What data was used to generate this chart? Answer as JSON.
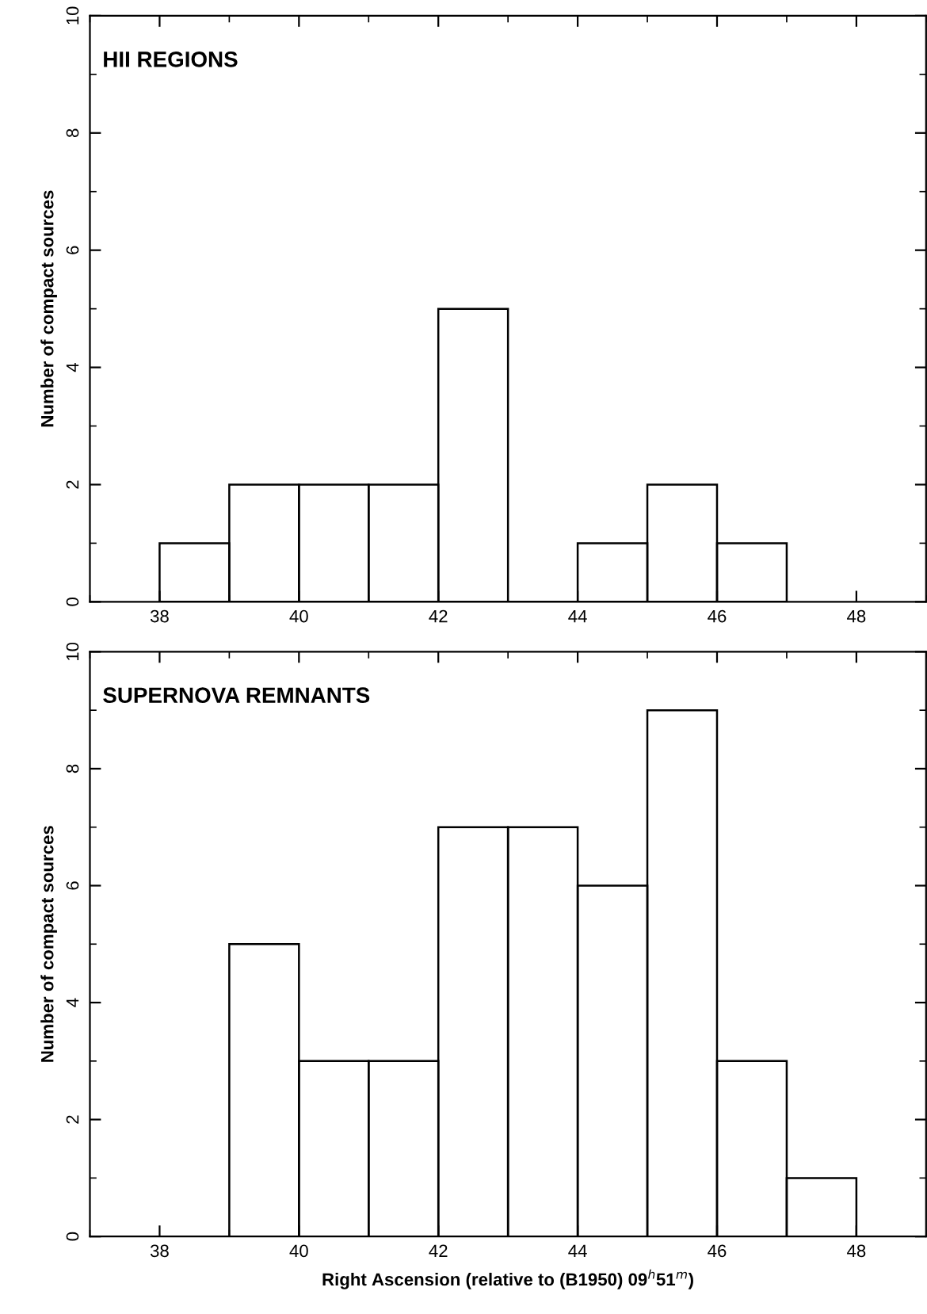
{
  "chart_data": [
    {
      "type": "histogram",
      "title": "HII REGIONS",
      "ylabel": "Number of compact sources",
      "bins": [
        38,
        39,
        40,
        41,
        42,
        43,
        44,
        45,
        46,
        47
      ],
      "values": [
        1,
        2,
        2,
        2,
        5,
        0,
        1,
        2,
        1
      ],
      "color": "#000000",
      "xlim": [
        37,
        49
      ],
      "xticks": [
        38,
        40,
        42,
        44,
        46,
        48
      ],
      "ylim": [
        0,
        10
      ],
      "yticks": [
        0,
        2,
        4,
        6,
        8,
        10
      ],
      "grid": false,
      "legend": false
    },
    {
      "type": "histogram",
      "title": "SUPERNOVA REMNANTS",
      "ylabel": "Number of compact sources",
      "xlabel": "Right Ascension (relative to (B1950) 09$^{h}$51$^{m}$)",
      "bins": [
        37,
        38,
        39,
        40,
        41,
        42,
        43,
        44,
        45,
        46,
        47,
        48
      ],
      "values": [
        0,
        0,
        5,
        3,
        3,
        7,
        7,
        6,
        9,
        3,
        1
      ],
      "color": "#000000",
      "xlim": [
        37,
        49
      ],
      "xticks": [
        38,
        40,
        42,
        44,
        46,
        48
      ],
      "ylim": [
        0,
        10
      ],
      "yticks": [
        0,
        2,
        4,
        6,
        8,
        10
      ],
      "grid": false,
      "legend": false
    }
  ]
}
